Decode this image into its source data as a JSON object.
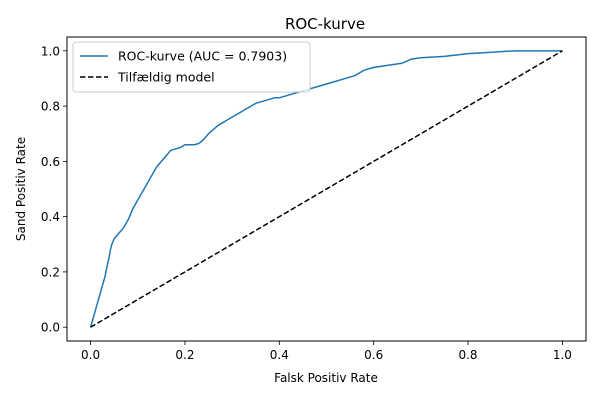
{
  "chart_data": {
    "type": "line",
    "title": "ROC-kurve",
    "xlabel": "Falsk Positiv Rate",
    "ylabel": "Sand Positiv Rate",
    "xlim": [
      -0.05,
      1.05
    ],
    "ylim": [
      -0.05,
      1.05
    ],
    "xticks": [
      "0.0",
      "0.2",
      "0.4",
      "0.6",
      "0.8",
      "1.0"
    ],
    "yticks": [
      "0.0",
      "0.2",
      "0.4",
      "0.6",
      "0.8",
      "1.0"
    ],
    "grid": false,
    "legend_position": "top-left",
    "series": [
      {
        "name": "ROC-kurve (AUC = 0.7903)",
        "color": "#1f77b4",
        "style": "solid",
        "x": [
          0.0,
          0.005,
          0.01,
          0.015,
          0.02,
          0.025,
          0.03,
          0.035,
          0.04,
          0.042,
          0.045,
          0.05,
          0.055,
          0.06,
          0.07,
          0.08,
          0.09,
          0.1,
          0.11,
          0.12,
          0.13,
          0.14,
          0.15,
          0.16,
          0.17,
          0.18,
          0.19,
          0.2,
          0.21,
          0.22,
          0.23,
          0.24,
          0.25,
          0.26,
          0.27,
          0.28,
          0.29,
          0.3,
          0.31,
          0.32,
          0.33,
          0.34,
          0.35,
          0.36,
          0.37,
          0.38,
          0.39,
          0.4,
          0.42,
          0.44,
          0.46,
          0.48,
          0.5,
          0.52,
          0.54,
          0.56,
          0.58,
          0.6,
          0.62,
          0.64,
          0.66,
          0.68,
          0.7,
          0.75,
          0.8,
          0.85,
          0.9,
          0.95,
          1.0
        ],
        "y": [
          0.0,
          0.03,
          0.06,
          0.09,
          0.12,
          0.15,
          0.18,
          0.22,
          0.26,
          0.28,
          0.3,
          0.32,
          0.33,
          0.34,
          0.36,
          0.39,
          0.43,
          0.46,
          0.49,
          0.52,
          0.55,
          0.58,
          0.6,
          0.62,
          0.64,
          0.645,
          0.65,
          0.66,
          0.66,
          0.66,
          0.665,
          0.68,
          0.7,
          0.715,
          0.73,
          0.74,
          0.75,
          0.76,
          0.77,
          0.78,
          0.79,
          0.8,
          0.81,
          0.815,
          0.82,
          0.825,
          0.83,
          0.83,
          0.84,
          0.85,
          0.86,
          0.87,
          0.88,
          0.89,
          0.9,
          0.91,
          0.93,
          0.94,
          0.945,
          0.95,
          0.955,
          0.97,
          0.975,
          0.98,
          0.99,
          0.995,
          1.0,
          1.0,
          1.0
        ]
      },
      {
        "name": "Tilfældig model",
        "color": "#000000",
        "style": "dashed",
        "x": [
          0.0,
          1.0
        ],
        "y": [
          0.0,
          1.0
        ]
      }
    ]
  }
}
